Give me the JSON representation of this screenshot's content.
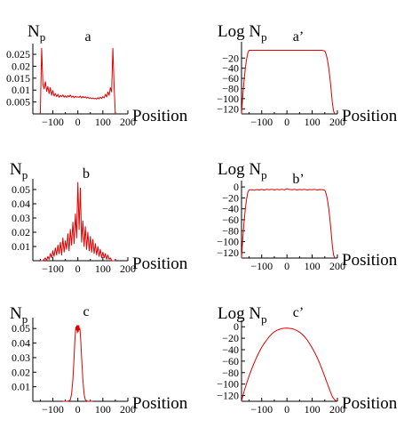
{
  "figure": {
    "position_label": "Position",
    "np_base": "N",
    "np_sub": "p",
    "log_prefix": "Log "
  },
  "chart_data": [
    {
      "type": "line",
      "panel": "a",
      "ylabel": "N_p",
      "xlabel": "Position",
      "xlim": [
        -180,
        200
      ],
      "ylim": [
        0,
        0.028
      ],
      "xticks": [
        -100,
        0,
        100,
        200
      ],
      "yticks": [
        0.005,
        0.01,
        0.015,
        0.02,
        0.025
      ],
      "x": [
        -150,
        -145,
        -140,
        -135,
        -130,
        -125,
        -120,
        -115,
        -110,
        -105,
        -100,
        -95,
        -90,
        -85,
        -80,
        -75,
        -70,
        -65,
        -60,
        -55,
        -50,
        -45,
        -40,
        -35,
        -30,
        -25,
        -20,
        -15,
        -10,
        -5,
        0,
        5,
        10,
        15,
        20,
        25,
        30,
        35,
        40,
        45,
        50,
        55,
        60,
        65,
        70,
        75,
        80,
        85,
        90,
        95,
        100,
        105,
        110,
        115,
        120,
        125,
        130,
        135,
        140,
        145,
        150
      ],
      "values": [
        0,
        0.0275,
        0.0125,
        0.0105,
        0.0135,
        0.0095,
        0.0115,
        0.0085,
        0.011,
        0.0078,
        0.0098,
        0.0075,
        0.0085,
        0.0072,
        0.0082,
        0.007,
        0.0078,
        0.0072,
        0.008,
        0.007,
        0.0076,
        0.0069,
        0.0077,
        0.0071,
        0.0079,
        0.007,
        0.0075,
        0.0068,
        0.0074,
        0.007,
        0.0072,
        0.0069,
        0.0075,
        0.0067,
        0.0073,
        0.0068,
        0.0072,
        0.0066,
        0.007,
        0.0065,
        0.0068,
        0.0064,
        0.0067,
        0.0063,
        0.0066,
        0.0062,
        0.0068,
        0.0063,
        0.007,
        0.0065,
        0.0072,
        0.0068,
        0.0082,
        0.0071,
        0.0092,
        0.0078,
        0.011,
        0.0092,
        0.0275,
        0.0115,
        0
      ]
    },
    {
      "type": "line",
      "panel": "a’",
      "ylabel": "Log N_p",
      "xlabel": "Position",
      "xlim": [
        -180,
        200
      ],
      "ylim": [
        -130,
        5
      ],
      "xticks": [
        -100,
        0,
        100,
        200
      ],
      "yticks": [
        -20,
        -40,
        -60,
        -80,
        -100,
        -120
      ],
      "x": [
        -180,
        -175,
        -170,
        -165,
        -160,
        -155,
        -150,
        -140,
        -120,
        -100,
        -80,
        -60,
        -40,
        -20,
        0,
        20,
        40,
        60,
        80,
        100,
        120,
        140,
        150,
        155,
        160,
        165,
        170,
        175,
        180,
        185,
        190
      ],
      "values": [
        -130,
        -95,
        -65,
        -40,
        -22,
        -10,
        -4.6,
        -4.7,
        -4.7,
        -4.7,
        -4.7,
        -4.7,
        -4.7,
        -4.7,
        -4.7,
        -4.7,
        -4.7,
        -4.7,
        -4.7,
        -4.7,
        -4.7,
        -4.6,
        -6,
        -12,
        -22,
        -38,
        -58,
        -82,
        -108,
        -125,
        -130
      ]
    },
    {
      "type": "line",
      "panel": "b",
      "ylabel": "N_p",
      "xlabel": "Position",
      "xlim": [
        -180,
        200
      ],
      "ylim": [
        0,
        0.055
      ],
      "xticks": [
        -100,
        0,
        100,
        200
      ],
      "yticks": [
        0.01,
        0.02,
        0.03,
        0.04,
        0.05
      ],
      "x": [
        -150,
        -140,
        -130,
        -125,
        -120,
        -115,
        -110,
        -105,
        -100,
        -95,
        -90,
        -85,
        -80,
        -75,
        -70,
        -65,
        -60,
        -55,
        -50,
        -45,
        -40,
        -35,
        -30,
        -25,
        -20,
        -15,
        -10,
        -5,
        0,
        5,
        10,
        15,
        20,
        25,
        30,
        35,
        40,
        45,
        50,
        55,
        60,
        65,
        70,
        75,
        80,
        85,
        90,
        95,
        100,
        105,
        110,
        115,
        120,
        125,
        130,
        135,
        140,
        150
      ],
      "values": [
        0,
        0,
        0.002,
        0,
        0.003,
        0.001,
        0.005,
        0.002,
        0.007,
        0.003,
        0.009,
        0.004,
        0.011,
        0.005,
        0.013,
        0.004,
        0.016,
        0.006,
        0.014,
        0.008,
        0.019,
        0.007,
        0.022,
        0.011,
        0.027,
        0.012,
        0.033,
        0.016,
        0.055,
        0.022,
        0.051,
        0.013,
        0.028,
        0.01,
        0.024,
        0.008,
        0.02,
        0.007,
        0.017,
        0.006,
        0.015,
        0.005,
        0.012,
        0.004,
        0.01,
        0.003,
        0.008,
        0.002,
        0.006,
        0.002,
        0.005,
        0.001,
        0.004,
        0.001,
        0.002,
        0,
        0,
        0
      ]
    },
    {
      "type": "line",
      "panel": "b’",
      "ylabel": "Log N_p",
      "xlabel": "Position",
      "xlim": [
        -180,
        200
      ],
      "ylim": [
        -130,
        5
      ],
      "xticks": [
        -100,
        0,
        100,
        200
      ],
      "yticks": [
        0,
        -20,
        -40,
        -60,
        -80,
        -100,
        -120
      ],
      "x": [
        -180,
        -175,
        -170,
        -165,
        -160,
        -155,
        -150,
        -140,
        -130,
        -120,
        -110,
        -100,
        -90,
        -80,
        -70,
        -60,
        -50,
        -40,
        -30,
        -20,
        -10,
        0,
        10,
        20,
        30,
        40,
        50,
        60,
        70,
        80,
        90,
        100,
        110,
        120,
        130,
        140,
        150,
        155,
        160,
        165,
        170,
        175,
        180,
        185,
        190
      ],
      "values": [
        -130,
        -95,
        -65,
        -40,
        -22,
        -10,
        -5.5,
        -5,
        -6,
        -4.8,
        -5.5,
        -4.6,
        -5.8,
        -4.5,
        -5.2,
        -4.3,
        -5.6,
        -4.4,
        -5.1,
        -4.2,
        -5.4,
        -3.5,
        -4.6,
        -5.2,
        -4.3,
        -5.5,
        -4.6,
        -5.1,
        -4.4,
        -5.6,
        -4.7,
        -5.2,
        -4.5,
        -5.7,
        -4.8,
        -5,
        -6,
        -12,
        -22,
        -38,
        -58,
        -82,
        -108,
        -125,
        -130
      ]
    },
    {
      "type": "line",
      "panel": "c",
      "ylabel": "N_p",
      "xlabel": "Position",
      "xlim": [
        -180,
        200
      ],
      "ylim": [
        0,
        0.055
      ],
      "xticks": [
        -100,
        0,
        100,
        200
      ],
      "yticks": [
        0.01,
        0.02,
        0.03,
        0.04,
        0.05
      ],
      "x": [
        -60,
        -40,
        -30,
        -25,
        -20,
        -15,
        -12,
        -10,
        -8,
        -6,
        -4,
        -2,
        0,
        2,
        4,
        6,
        8,
        10,
        12,
        15,
        20,
        25,
        30,
        40,
        60
      ],
      "values": [
        0,
        0,
        0.001,
        0.005,
        0.015,
        0.031,
        0.042,
        0.047,
        0.051,
        0.049,
        0.052,
        0.047,
        0.052,
        0.048,
        0.052,
        0.049,
        0.05,
        0.046,
        0.04,
        0.03,
        0.015,
        0.005,
        0.001,
        0,
        0
      ]
    },
    {
      "type": "line",
      "panel": "c’",
      "ylabel": "Log N_p",
      "xlabel": "Position",
      "xlim": [
        -180,
        200
      ],
      "ylim": [
        -130,
        5
      ],
      "xticks": [
        -100,
        0,
        100,
        200
      ],
      "yticks": [
        0,
        -20,
        -40,
        -60,
        -80,
        -100,
        -120
      ],
      "x": [
        -180,
        -170,
        -160,
        -150,
        -140,
        -130,
        -120,
        -110,
        -100,
        -90,
        -80,
        -70,
        -60,
        -50,
        -40,
        -30,
        -20,
        -10,
        0,
        10,
        20,
        30,
        40,
        50,
        60,
        70,
        80,
        90,
        100,
        110,
        120,
        130,
        140,
        150,
        160,
        170,
        180,
        190,
        200
      ],
      "values": [
        -130,
        -113,
        -99,
        -86,
        -74,
        -63,
        -53,
        -44,
        -36,
        -29,
        -23,
        -17,
        -12.5,
        -9,
        -6.2,
        -4.5,
        -3.3,
        -2.6,
        -2.5,
        -2.7,
        -3.4,
        -4.8,
        -6.8,
        -9.5,
        -13,
        -17.5,
        -23,
        -29.5,
        -37,
        -45,
        -54,
        -64,
        -75,
        -87,
        -99,
        -111,
        -122,
        -128,
        -130
      ]
    }
  ]
}
